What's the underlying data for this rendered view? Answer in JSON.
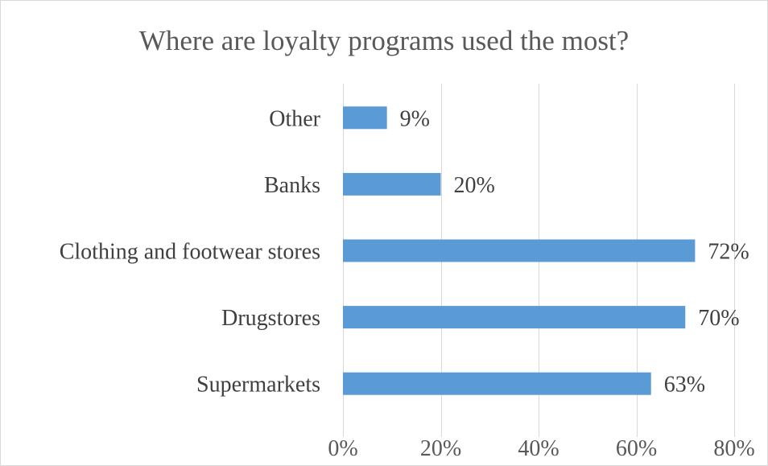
{
  "chart_data": {
    "type": "bar",
    "orientation": "horizontal",
    "title": "Where are loyalty programs used the most?",
    "categories": [
      "Other",
      "Banks",
      "Clothing and footwear stores",
      "Drugstores",
      "Supermarkets"
    ],
    "values": [
      9,
      20,
      72,
      70,
      63
    ],
    "data_labels": [
      "9%",
      "20%",
      "72%",
      "70%",
      "63%"
    ],
    "xlim": [
      0,
      80
    ],
    "x_ticks": [
      0,
      20,
      40,
      60,
      80
    ],
    "x_tick_labels": [
      "0%",
      "20%",
      "40%",
      "60%",
      "80%"
    ],
    "xlabel": "",
    "ylabel": "",
    "grid": true,
    "legend": "none",
    "bar_color": "#5b9bd5"
  }
}
